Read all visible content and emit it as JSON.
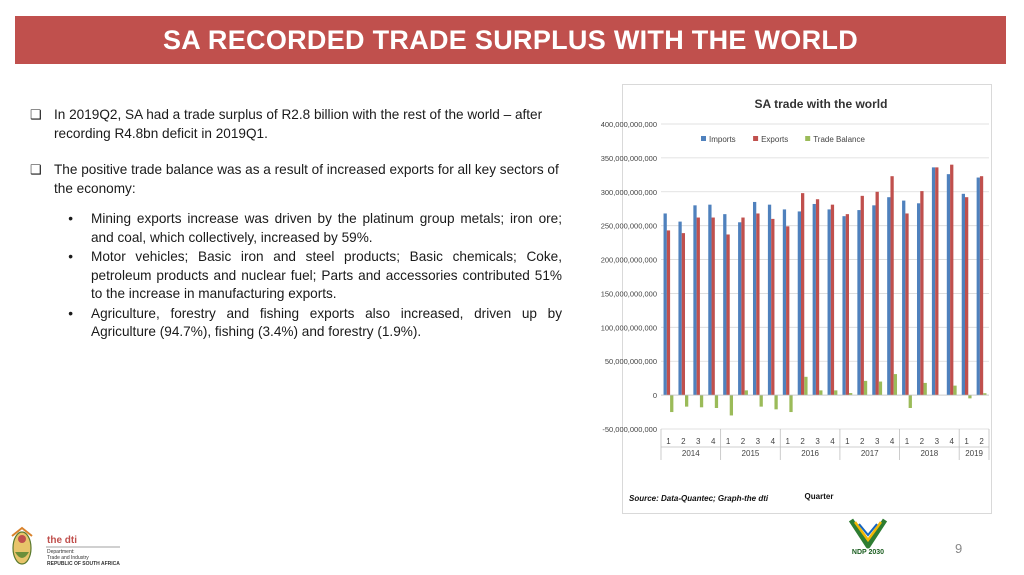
{
  "slide": {
    "title": "SA RECORDED TRADE SURPLUS WITH THE WORLD",
    "page_number": "9",
    "paragraphs": [
      "In 2019Q2, SA had a trade surplus of R2.8 billion with the rest of the world – after recording R4.8bn deficit in 2019Q1.",
      "The positive trade balance was as a result of increased exports for all key sectors of the economy:"
    ],
    "bullets": [
      "Mining exports increase was driven by the platinum group metals; iron ore; and coal, which collectively, increased by 59%.",
      "Motor vehicles; Basic iron and steel products; Basic chemicals; Coke, petroleum products and nuclear fuel; Parts and accessories contributed 51% to the increase in manufacturing exports.",
      "Agriculture, forestry and fishing exports also increased, driven up by Agriculture (94.7%), fishing (3.4%)  and  forestry (1.9%)."
    ],
    "logo": {
      "name": "the dti",
      "line1": "Department:",
      "line2": "Trade and Industry",
      "line3": "REPUBLIC OF SOUTH AFRICA"
    },
    "ndp_logo_text": "NDP 2030"
  },
  "colors": {
    "title_bar": "#c0504d",
    "imports": "#4f81bd",
    "exports": "#c0504d",
    "balance": "#9bbb59"
  },
  "chart_data": {
    "type": "bar",
    "title": "SA trade with the world",
    "xlabel": "Quarter",
    "ylabel": "",
    "source": "Source: Data-Quantec; Graph-the dti",
    "legend_position": "top",
    "grid": true,
    "ylim": [
      -50000000000,
      400000000000
    ],
    "y_ticks": [
      -50000000000,
      0,
      50000000000,
      100000000000,
      150000000000,
      200000000000,
      250000000000,
      300000000000,
      350000000000,
      400000000000
    ],
    "y_tick_labels": [
      "-50,000,000,000",
      "0",
      "50,000,000,000",
      "100,000,000,000",
      "150,000,000,000",
      "200,000,000,000",
      "250,000,000,000",
      "300,000,000,000",
      "350,000,000,000",
      "400,000,000,000"
    ],
    "categories": [
      "1",
      "2",
      "3",
      "4",
      "1",
      "2",
      "3",
      "4",
      "1",
      "2",
      "3",
      "4",
      "1",
      "2",
      "3",
      "4",
      "1",
      "2",
      "3",
      "4",
      "1",
      "2"
    ],
    "year_groups": [
      {
        "label": "2014",
        "count": 4
      },
      {
        "label": "2015",
        "count": 4
      },
      {
        "label": "2016",
        "count": 4
      },
      {
        "label": "2017",
        "count": 4
      },
      {
        "label": "2018",
        "count": 4
      },
      {
        "label": "2019",
        "count": 2
      }
    ],
    "series": [
      {
        "name": "Imports",
        "values": [
          268000000000,
          256000000000,
          280000000000,
          281000000000,
          267000000000,
          255000000000,
          285000000000,
          281000000000,
          274000000000,
          271000000000,
          282000000000,
          274000000000,
          264000000000,
          273000000000,
          280000000000,
          292000000000,
          287000000000,
          283000000000,
          336000000000,
          326000000000,
          297000000000,
          321000000000
        ]
      },
      {
        "name": "Exports",
        "values": [
          243000000000,
          239000000000,
          262000000000,
          262000000000,
          237000000000,
          262000000000,
          268000000000,
          260000000000,
          249000000000,
          298000000000,
          289000000000,
          281000000000,
          267000000000,
          294000000000,
          300000000000,
          323000000000,
          268000000000,
          301000000000,
          336000000000,
          340000000000,
          292000000000,
          323000000000
        ]
      },
      {
        "name": "Trade Balance",
        "values": [
          -25000000000,
          -17000000000,
          -18000000000,
          -19000000000,
          -30000000000,
          7000000000,
          -17000000000,
          -21000000000,
          -25000000000,
          27000000000,
          7000000000,
          7000000000,
          3000000000,
          21000000000,
          20000000000,
          31000000000,
          -19000000000,
          18000000000,
          0,
          14000000000,
          -4800000000,
          2800000000
        ]
      }
    ]
  }
}
